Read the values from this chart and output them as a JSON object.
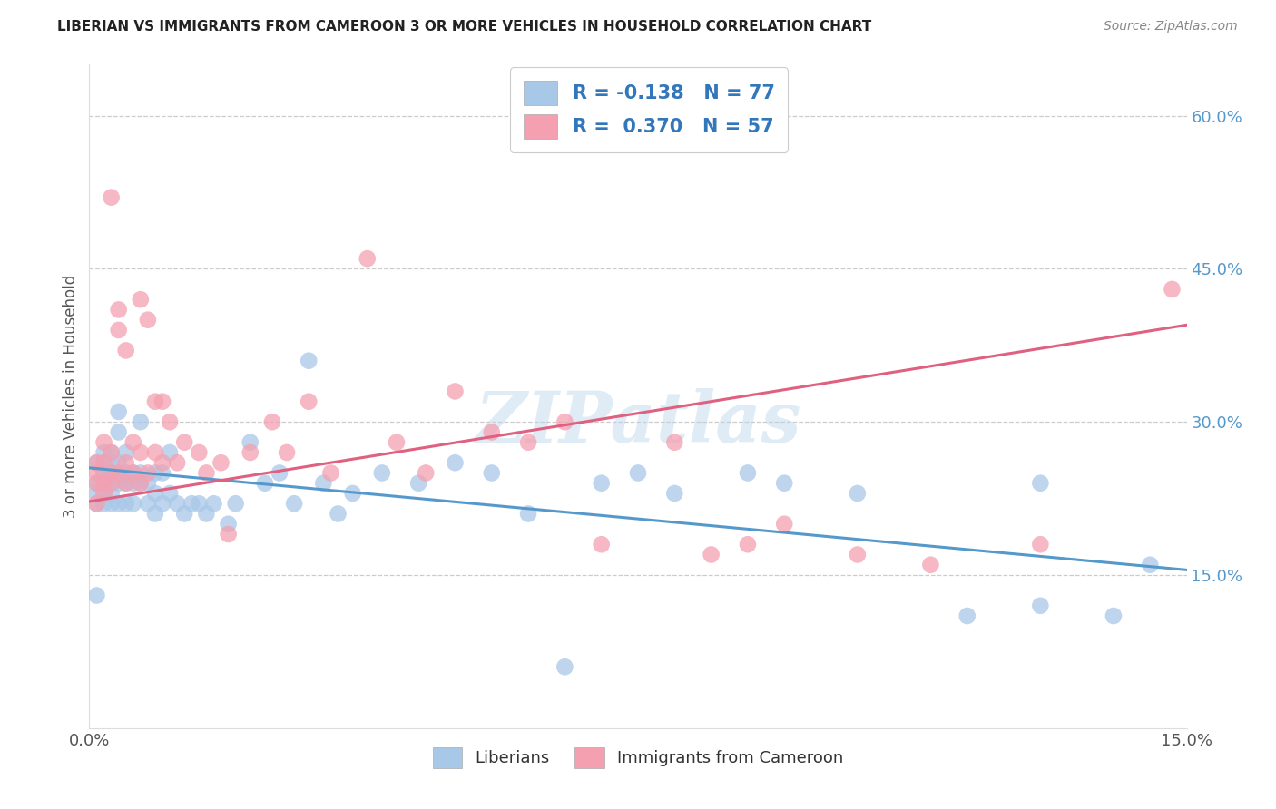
{
  "title": "LIBERIAN VS IMMIGRANTS FROM CAMEROON 3 OR MORE VEHICLES IN HOUSEHOLD CORRELATION CHART",
  "source": "Source: ZipAtlas.com",
  "ylabel": "3 or more Vehicles in Household",
  "xlim": [
    0.0,
    0.15
  ],
  "ylim": [
    0.0,
    0.65
  ],
  "x_tick_positions": [
    0.0,
    0.03,
    0.06,
    0.09,
    0.12,
    0.15
  ],
  "x_tick_labels": [
    "0.0%",
    "",
    "",
    "",
    "",
    "15.0%"
  ],
  "y_ticks_right": [
    0.15,
    0.3,
    0.45,
    0.6
  ],
  "y_tick_labels_right": [
    "15.0%",
    "30.0%",
    "45.0%",
    "60.0%"
  ],
  "blue_R": "-0.138",
  "blue_N": "77",
  "pink_R": "0.370",
  "pink_N": "57",
  "blue_color": "#a8c8e8",
  "pink_color": "#f4a0b0",
  "blue_line_color": "#5599cc",
  "pink_line_color": "#e06080",
  "watermark": "ZIPatlas",
  "legend_label_blue": "Liberians",
  "legend_label_pink": "Immigrants from Cameroon",
  "blue_scatter_x": [
    0.001,
    0.001,
    0.001,
    0.001,
    0.001,
    0.002,
    0.002,
    0.002,
    0.002,
    0.002,
    0.002,
    0.002,
    0.003,
    0.003,
    0.003,
    0.003,
    0.003,
    0.003,
    0.003,
    0.004,
    0.004,
    0.004,
    0.004,
    0.004,
    0.004,
    0.005,
    0.005,
    0.005,
    0.005,
    0.006,
    0.006,
    0.006,
    0.007,
    0.007,
    0.007,
    0.008,
    0.008,
    0.009,
    0.009,
    0.009,
    0.01,
    0.01,
    0.011,
    0.011,
    0.012,
    0.013,
    0.014,
    0.015,
    0.016,
    0.017,
    0.019,
    0.02,
    0.022,
    0.024,
    0.026,
    0.028,
    0.03,
    0.032,
    0.034,
    0.036,
    0.04,
    0.045,
    0.05,
    0.055,
    0.06,
    0.065,
    0.07,
    0.075,
    0.08,
    0.09,
    0.095,
    0.105,
    0.12,
    0.13,
    0.13,
    0.14,
    0.145
  ],
  "blue_scatter_y": [
    0.13,
    0.22,
    0.23,
    0.24,
    0.26,
    0.22,
    0.23,
    0.24,
    0.25,
    0.25,
    0.26,
    0.27,
    0.22,
    0.23,
    0.24,
    0.25,
    0.25,
    0.26,
    0.27,
    0.22,
    0.24,
    0.25,
    0.26,
    0.29,
    0.31,
    0.22,
    0.24,
    0.25,
    0.27,
    0.22,
    0.24,
    0.25,
    0.24,
    0.25,
    0.3,
    0.22,
    0.24,
    0.21,
    0.23,
    0.25,
    0.22,
    0.25,
    0.23,
    0.27,
    0.22,
    0.21,
    0.22,
    0.22,
    0.21,
    0.22,
    0.2,
    0.22,
    0.28,
    0.24,
    0.25,
    0.22,
    0.36,
    0.24,
    0.21,
    0.23,
    0.25,
    0.24,
    0.26,
    0.25,
    0.21,
    0.06,
    0.24,
    0.25,
    0.23,
    0.25,
    0.24,
    0.23,
    0.11,
    0.12,
    0.24,
    0.11,
    0.16
  ],
  "pink_scatter_x": [
    0.001,
    0.001,
    0.001,
    0.001,
    0.002,
    0.002,
    0.002,
    0.002,
    0.003,
    0.003,
    0.003,
    0.003,
    0.004,
    0.004,
    0.004,
    0.005,
    0.005,
    0.005,
    0.006,
    0.006,
    0.007,
    0.007,
    0.007,
    0.008,
    0.008,
    0.009,
    0.009,
    0.01,
    0.01,
    0.011,
    0.012,
    0.013,
    0.015,
    0.016,
    0.018,
    0.019,
    0.022,
    0.025,
    0.027,
    0.03,
    0.033,
    0.038,
    0.042,
    0.046,
    0.05,
    0.055,
    0.06,
    0.065,
    0.07,
    0.08,
    0.085,
    0.09,
    0.095,
    0.105,
    0.115,
    0.13,
    0.148
  ],
  "pink_scatter_y": [
    0.22,
    0.24,
    0.25,
    0.26,
    0.23,
    0.24,
    0.26,
    0.28,
    0.24,
    0.25,
    0.27,
    0.52,
    0.25,
    0.39,
    0.41,
    0.24,
    0.26,
    0.37,
    0.25,
    0.28,
    0.24,
    0.27,
    0.42,
    0.25,
    0.4,
    0.27,
    0.32,
    0.26,
    0.32,
    0.3,
    0.26,
    0.28,
    0.27,
    0.25,
    0.26,
    0.19,
    0.27,
    0.3,
    0.27,
    0.32,
    0.25,
    0.46,
    0.28,
    0.25,
    0.33,
    0.29,
    0.28,
    0.3,
    0.18,
    0.28,
    0.17,
    0.18,
    0.2,
    0.17,
    0.16,
    0.18,
    0.43
  ]
}
